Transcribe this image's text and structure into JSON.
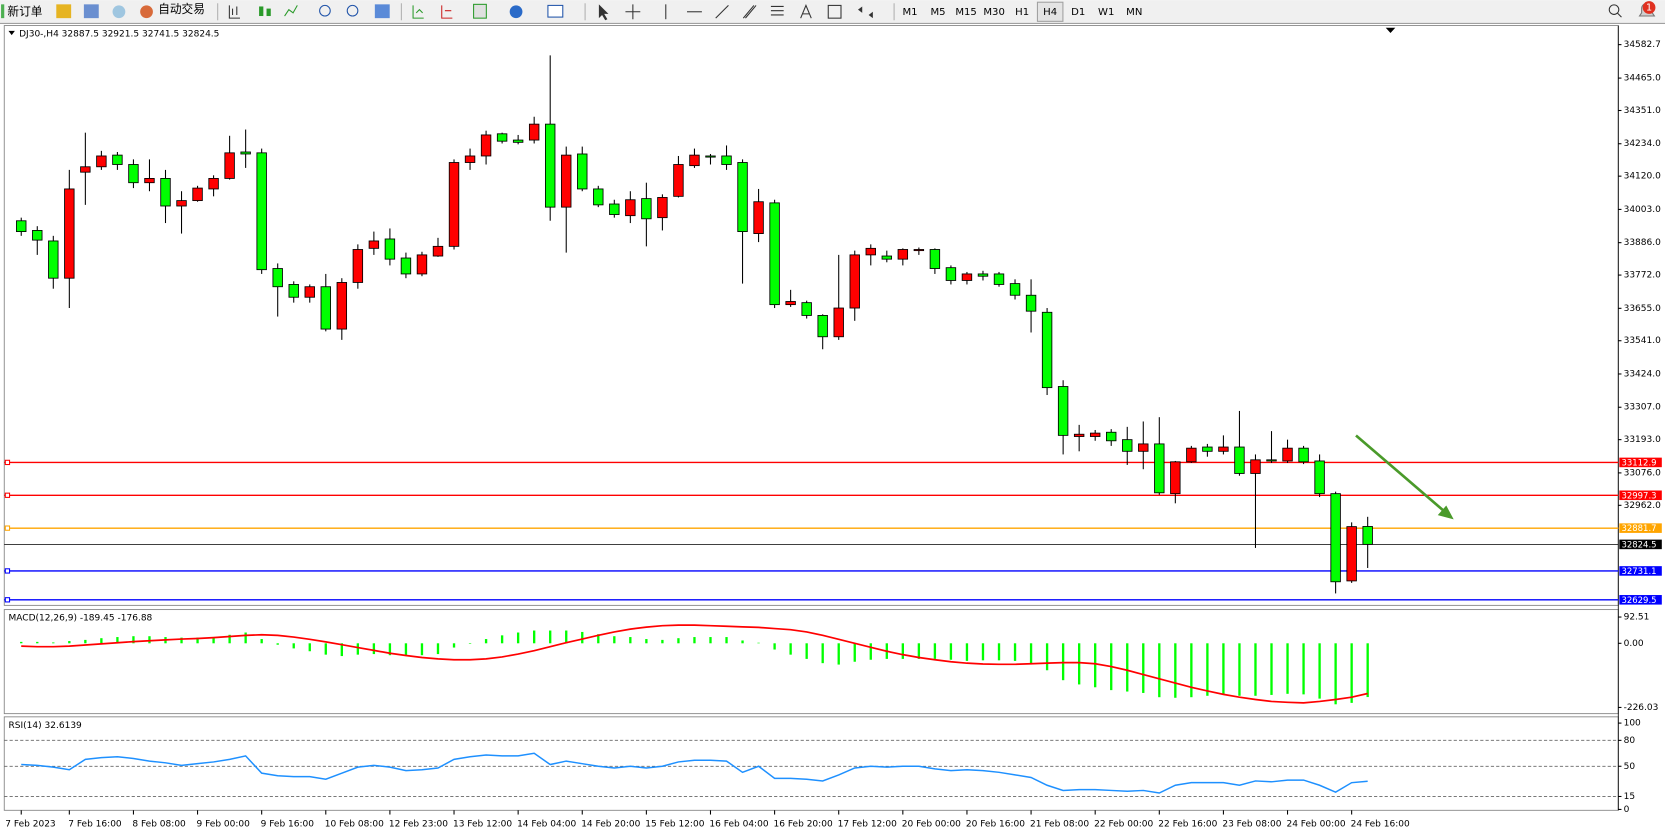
{
  "toolbar": {
    "new_order": "新订单",
    "auto_trading": "自动交易",
    "timeframes": [
      "M1",
      "M5",
      "M15",
      "M30",
      "H1",
      "H4",
      "D1",
      "W1",
      "MN"
    ],
    "active": "H4",
    "notifications": 1
  },
  "chart_data": [
    {
      "type": "candlestick",
      "title": "DJ30-,H4  32887.5 32921.5 32741.5 32824.5",
      "categories": [
        "7 Feb 2023",
        null,
        null,
        "7 Feb 16:00",
        null,
        null,
        null,
        "8 Feb 08:00",
        null,
        null,
        null,
        "9 Feb 00:00",
        null,
        null,
        null,
        "9 Feb 16:00",
        null,
        null,
        null,
        "10 Feb 08:00",
        null,
        null,
        null,
        "12 Feb 23:00",
        null,
        null,
        null,
        "13 Feb 12:00",
        null,
        null,
        null,
        "14 Feb 04:00",
        null,
        null,
        null,
        "14 Feb 20:00",
        null,
        null,
        null,
        "15 Feb 12:00",
        null,
        null,
        null,
        "16 Feb 04:00",
        null,
        null,
        null,
        "16 Feb 20:00",
        null,
        null,
        null,
        "17 Feb 12:00",
        null,
        null,
        null,
        "20 Feb 00:00",
        null,
        null,
        null,
        "20 Feb 16:00",
        null,
        null,
        null,
        "21 Feb 08:00",
        null,
        null,
        null,
        "22 Feb 00:00",
        null,
        null,
        null,
        "22 Feb 16:00",
        null,
        null,
        null,
        "23 Feb 08:00",
        null,
        null,
        null,
        "24 Feb 00:00",
        null,
        null,
        null,
        "24 Feb 16:00",
        null
      ],
      "open": [
        33963,
        33929,
        33892,
        33761,
        34134,
        34153,
        34194,
        34161,
        34097,
        34112,
        34015,
        34034,
        34075,
        34112,
        34205,
        34202,
        33795,
        33739,
        33694,
        33731,
        33582,
        33746,
        33866,
        33899,
        33832,
        33776,
        33839,
        33873,
        34168,
        34191,
        34269,
        34247,
        34247,
        34303,
        34011,
        34198,
        34075,
        34022,
        33981,
        34041,
        33974,
        34049,
        34157,
        34191,
        34191,
        34168,
        33918,
        34026,
        33668,
        33675,
        33630,
        33555,
        33656,
        33843,
        33839,
        33828,
        33858,
        33862,
        33798,
        33753,
        33776,
        33776,
        33742,
        33701,
        33641,
        33380,
        33204,
        33204,
        33219,
        33193,
        33152,
        33178,
        33003,
        33115,
        33167,
        33152,
        33167,
        33074,
        33122,
        33118,
        33163,
        33118,
        33003,
        32696,
        32887.5
      ],
      "high": [
        33974,
        33944,
        33910,
        34142,
        34273,
        34209,
        34205,
        34179,
        34179,
        34142,
        34067,
        34086,
        34123,
        34262,
        34284,
        34217,
        33813,
        33750,
        33739,
        33776,
        33761,
        33880,
        33925,
        33936,
        33851,
        33854,
        33903,
        34179,
        34217,
        34280,
        34273,
        34265,
        34329,
        34545,
        34224,
        34224,
        34086,
        34037,
        34067,
        34097,
        34056,
        34191,
        34217,
        34198,
        34228,
        34179,
        34075,
        34037,
        33720,
        33682,
        33634,
        33843,
        33858,
        33880,
        33858,
        33866,
        33869,
        33866,
        33806,
        33783,
        33787,
        33783,
        33757,
        33757,
        33656,
        33402,
        33245,
        33227,
        33230,
        33238,
        33257,
        33272,
        33118,
        33171,
        33178,
        33208,
        33294,
        33141,
        33223,
        33193,
        33171,
        33141,
        33010,
        32902,
        32921.5
      ],
      "low": [
        33910,
        33843,
        33724,
        33656,
        34019,
        34142,
        34142,
        34078,
        34067,
        33955,
        33918,
        34030,
        34049,
        34108,
        34149,
        33776,
        33626,
        33675,
        33675,
        33574,
        33544,
        33724,
        33843,
        33806,
        33761,
        33768,
        33836,
        33862,
        34142,
        34161,
        34235,
        34232,
        34235,
        33963,
        33851,
        34067,
        34011,
        33974,
        33955,
        33873,
        33929,
        34045,
        34149,
        34161,
        34142,
        33742,
        33888,
        33656,
        33660,
        33619,
        33511,
        33544,
        33611,
        33806,
        33817,
        33806,
        33843,
        33776,
        33739,
        33739,
        33753,
        33731,
        33686,
        33570,
        33350,
        33141,
        33152,
        33189,
        33171,
        33104,
        33089,
        32999,
        32969,
        33111,
        33133,
        33141,
        33066,
        32812,
        33111,
        33111,
        33107,
        32991,
        32652,
        32689,
        32741.5
      ],
      "close": [
        33925,
        33895,
        33761,
        34075,
        34153,
        34191,
        34161,
        34097,
        34112,
        34015,
        34034,
        34078,
        34112,
        34202,
        34198,
        33791,
        33731,
        33694,
        33731,
        33582,
        33746,
        33862,
        33892,
        33828,
        33776,
        33843,
        33873,
        34168,
        34191,
        34265,
        34243,
        34239,
        34303,
        34011,
        34194,
        34075,
        34019,
        33985,
        34037,
        33970,
        34045,
        34161,
        34194,
        34187,
        34161,
        33925,
        34030,
        33668,
        33679,
        33630,
        33555,
        33656,
        33843,
        33866,
        33828,
        33862,
        33862,
        33795,
        33753,
        33776,
        33768,
        33739,
        33701,
        33645,
        33376,
        33208,
        33212,
        33216,
        33189,
        33152,
        33178,
        33006,
        33115,
        33163,
        33152,
        33167,
        33074,
        33122,
        33118,
        33163,
        33115,
        33003,
        32693,
        32887,
        32824.5
      ],
      "up_color": "#ff0000",
      "down_color": "#00ff00",
      "ylim": [
        32610,
        34646
      ],
      "yticks": [
        34582.7,
        {
          "value": 34465,
          "label": "34465.0"
        },
        {
          "value": 34351,
          "label": "34351.0"
        },
        {
          "value": 34234,
          "label": "34234.0"
        },
        {
          "value": 34120,
          "label": "34120.0"
        },
        {
          "value": 34003,
          "label": "34003.0"
        },
        {
          "value": 33886,
          "label": "33886.0"
        },
        {
          "value": 33772,
          "label": "33772.0"
        },
        {
          "value": 33655,
          "label": "33655.0"
        },
        {
          "value": 33541,
          "label": "33541.0"
        },
        {
          "value": 33424,
          "label": "33424.0"
        },
        {
          "value": 33307,
          "label": "33307.0"
        },
        {
          "value": 33193,
          "label": "33193.0"
        },
        {
          "value": 33076,
          "label": "33076.0"
        },
        {
          "value": 32962,
          "label": "32962.0"
        }
      ],
      "hlines": [
        {
          "value": 33112.9,
          "color": "#ff0000"
        },
        {
          "value": 32997.3,
          "color": "#ff0000"
        },
        {
          "value": 32881.7,
          "color": "#ffa500"
        },
        {
          "value": 32731.1,
          "color": "#0000ff"
        },
        {
          "value": 32629.5,
          "color": "#0000ff"
        }
      ]
    },
    {
      "type": "macd",
      "title": "MACD(12,26,9) -189.45 -176.88",
      "ylim": [
        -248,
        115
      ],
      "yticks": [
        92.51,
        {
          "value": 0,
          "label": "0.00"
        },
        -226.03
      ],
      "histogram": {
        "color": "#00ff00",
        "values": [
          5,
          5,
          3,
          8,
          12,
          18,
          22,
          25,
          25,
          22,
          20,
          20,
          22,
          30,
          38,
          15,
          -5,
          -18,
          -28,
          -40,
          -45,
          -40,
          -38,
          -42,
          -45,
          -42,
          -38,
          -15,
          -2,
          15,
          28,
          38,
          45,
          45,
          45,
          40,
          32,
          25,
          22,
          15,
          12,
          18,
          22,
          22,
          22,
          10,
          2,
          -22,
          -40,
          -55,
          -70,
          -75,
          -65,
          -58,
          -55,
          -55,
          -55,
          -55,
          -58,
          -62,
          -60,
          -60,
          -62,
          -70,
          -95,
          -130,
          -145,
          -155,
          -165,
          -170,
          -175,
          -190,
          -192,
          -190,
          -185,
          -182,
          -185,
          -185,
          -182,
          -178,
          -180,
          -195,
          -215,
          -210,
          -189.45
        ]
      },
      "signal": {
        "color": "#ff0000",
        "values": [
          -10,
          -12,
          -12,
          -10,
          -6,
          -2,
          2,
          6,
          9,
          12,
          15,
          17,
          20,
          24,
          28,
          30,
          28,
          22,
          14,
          5,
          -5,
          -15,
          -25,
          -35,
          -43,
          -50,
          -55,
          -58,
          -58,
          -55,
          -48,
          -38,
          -26,
          -12,
          2,
          15,
          28,
          40,
          50,
          57,
          62,
          64,
          64,
          62,
          60,
          58,
          56,
          52,
          48,
          40,
          28,
          14,
          0,
          -14,
          -28,
          -40,
          -50,
          -58,
          -65,
          -70,
          -73,
          -74,
          -74,
          -72,
          -70,
          -68,
          -68,
          -72,
          -82,
          -95,
          -110,
          -125,
          -140,
          -155,
          -168,
          -180,
          -190,
          -198,
          -205,
          -208,
          -210,
          -205,
          -198,
          -190,
          -176.88
        ]
      }
    },
    {
      "type": "line",
      "title": "RSI(14) 32.6139",
      "ylim": [
        -1,
        106
      ],
      "yticks": [
        100,
        80,
        50,
        15,
        0
      ],
      "levels": [
        80,
        50,
        15
      ],
      "color": "#1e90ff",
      "values": [
        52,
        51,
        49,
        46,
        58,
        60,
        61,
        59,
        56,
        54,
        51,
        53,
        55,
        58,
        62,
        42,
        39,
        38,
        38,
        35,
        42,
        49,
        51,
        49,
        45,
        46,
        48,
        58,
        61,
        63,
        62,
        62,
        65,
        52,
        56,
        53,
        50,
        48,
        50,
        48,
        50,
        55,
        57,
        57,
        56,
        43,
        50,
        36,
        36,
        35,
        33,
        40,
        48,
        50,
        49,
        50,
        50,
        47,
        45,
        46,
        45,
        43,
        40,
        37,
        28,
        22,
        23,
        23,
        22,
        21,
        22,
        19,
        28,
        31,
        31,
        31,
        28,
        33,
        32,
        34,
        34,
        28,
        20,
        31,
        32.6139
      ]
    }
  ]
}
